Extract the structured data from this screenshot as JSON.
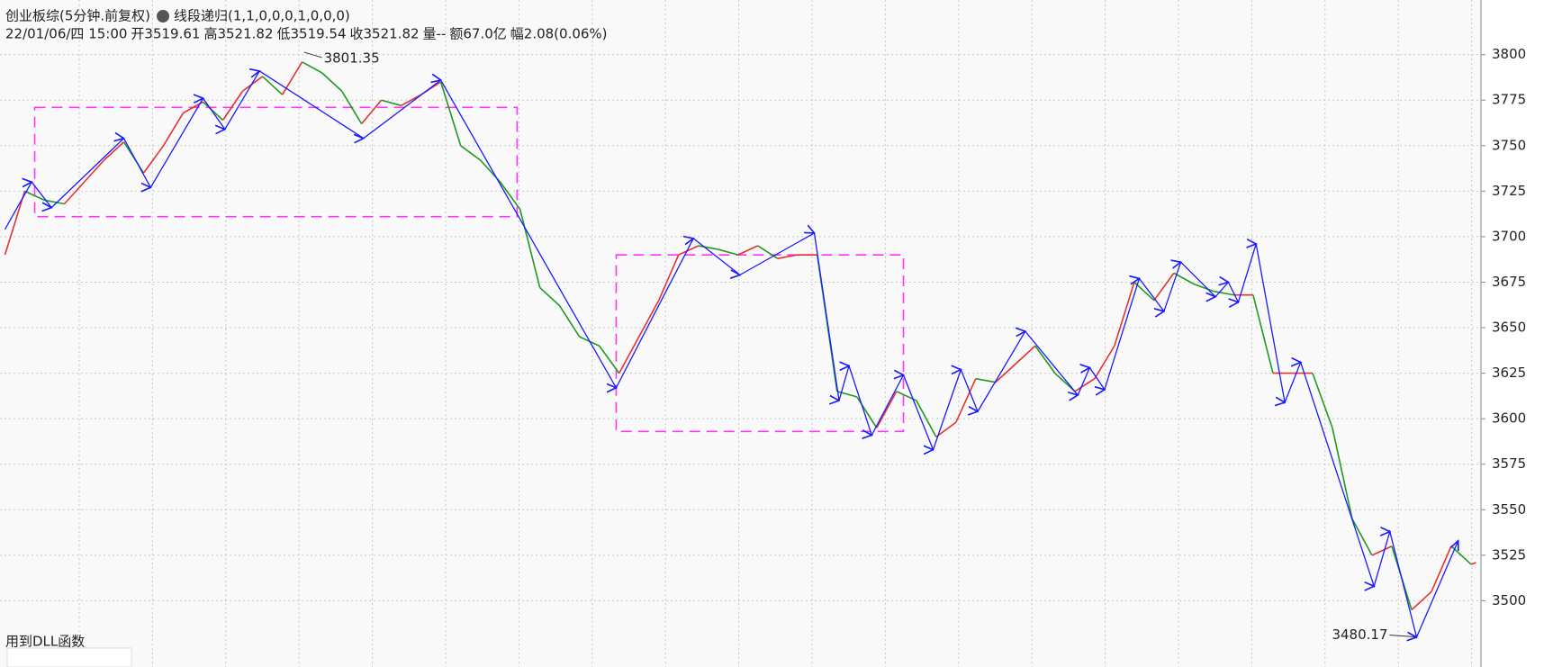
{
  "chart_data": {
    "type": "line",
    "title": "创业板综(5分钟.前复权)",
    "indicator": "线段递归(1,1,0,0,0,1,0,0,0)",
    "info": [
      {
        "text": "22/01/06/四 15:00",
        "color": "#222222"
      },
      {
        "text": "开3519.61",
        "color": "#1f9a1f"
      },
      {
        "text": "高3521.82",
        "color": "#e83030"
      },
      {
        "text": "低3519.54",
        "color": "#1f9a1f"
      },
      {
        "text": "收3521.82",
        "color": "#e83030"
      },
      {
        "text": "量--",
        "color": "#222222"
      },
      {
        "text": "额67.0亿",
        "color": "#222222"
      },
      {
        "text": "幅2.08(0.06%)",
        "color": "#e83030"
      }
    ],
    "note": "用到DLL函数",
    "xlim": [
      0,
      299
    ],
    "ylim": [
      3474,
      3830
    ],
    "yticks": [
      3500,
      3525,
      3550,
      3575,
      3600,
      3625,
      3650,
      3675,
      3700,
      3725,
      3750,
      3775,
      3800
    ],
    "grid": true,
    "series": [
      {
        "up_color": "#e83030",
        "down_color": "#1f9a1f",
        "x": [
          1,
          5,
          9,
          13,
          17,
          21,
          25,
          29,
          33,
          37,
          41,
          45,
          49,
          53,
          57,
          61,
          65,
          69,
          73,
          77,
          81,
          85,
          89,
          93,
          97,
          101,
          105,
          109,
          113,
          117,
          121,
          125,
          129,
          133,
          137,
          141,
          145,
          149,
          153,
          157,
          161,
          165,
          169,
          173,
          177,
          181,
          185,
          189,
          193,
          197,
          201,
          205,
          209,
          213,
          217,
          221,
          225,
          229,
          233,
          237,
          241,
          245,
          249,
          253,
          257,
          261,
          265,
          269,
          273,
          277,
          281,
          285,
          289,
          293,
          297,
          298
        ],
        "values": [
          3690,
          3725,
          3720,
          3718,
          3730,
          3742,
          3752,
          3735,
          3750,
          3768,
          3774,
          3764,
          3780,
          3788,
          3778,
          3796,
          3790,
          3780,
          3762,
          3775,
          3772,
          3778,
          3785,
          3750,
          3742,
          3730,
          3715,
          3672,
          3662,
          3645,
          3640,
          3625,
          3645,
          3665,
          3690,
          3695,
          3693,
          3690,
          3695,
          3688,
          3690,
          3690,
          3615,
          3612,
          3595,
          3615,
          3610,
          3590,
          3598,
          3622,
          3620,
          3630,
          3640,
          3625,
          3615,
          3622,
          3640,
          3675,
          3665,
          3680,
          3674,
          3670,
          3668,
          3668,
          3625,
          3625,
          3625,
          3595,
          3545,
          3525,
          3530,
          3495,
          3505,
          3530,
          3520,
          3521
        ]
      },
      {
        "color": "#1a1aff",
        "x": [
          1,
          6.4,
          10.4,
          25,
          30.4,
          41,
          45.4,
          52.4,
          73.4,
          89,
          124.4,
          140,
          149.4,
          164.4,
          169.4,
          171.4,
          176,
          182.4,
          188.4,
          194,
          197.4,
          207,
          217.6,
          220,
          223,
          230,
          235,
          238.4,
          245.4,
          248,
          250,
          253.6,
          259.4,
          262.6,
          277.4,
          280.6,
          286,
          294.4
        ],
        "values": [
          3704,
          3730,
          3716,
          3754,
          3727,
          3776,
          3759,
          3791,
          3754,
          3786,
          3617,
          3699,
          3679,
          3702,
          3610,
          3629,
          3591,
          3624,
          3583,
          3627,
          3604,
          3648,
          3613,
          3628,
          3616,
          3677,
          3659,
          3686,
          3667,
          3675,
          3664,
          3696,
          3609,
          3631,
          3508,
          3538,
          3480,
          3533
        ]
      }
    ],
    "zones": [
      {
        "color": "#ff33ff",
        "x": [
          7,
          104.4
        ],
        "y": [
          3711,
          3771
        ]
      },
      {
        "color": "#ff33ff",
        "x": [
          124.4,
          182.4
        ],
        "y": [
          3593,
          3690
        ]
      }
    ],
    "high": {
      "x": 61,
      "value": 3801.35
    },
    "low": {
      "x": 286,
      "value": 3480.17
    }
  }
}
